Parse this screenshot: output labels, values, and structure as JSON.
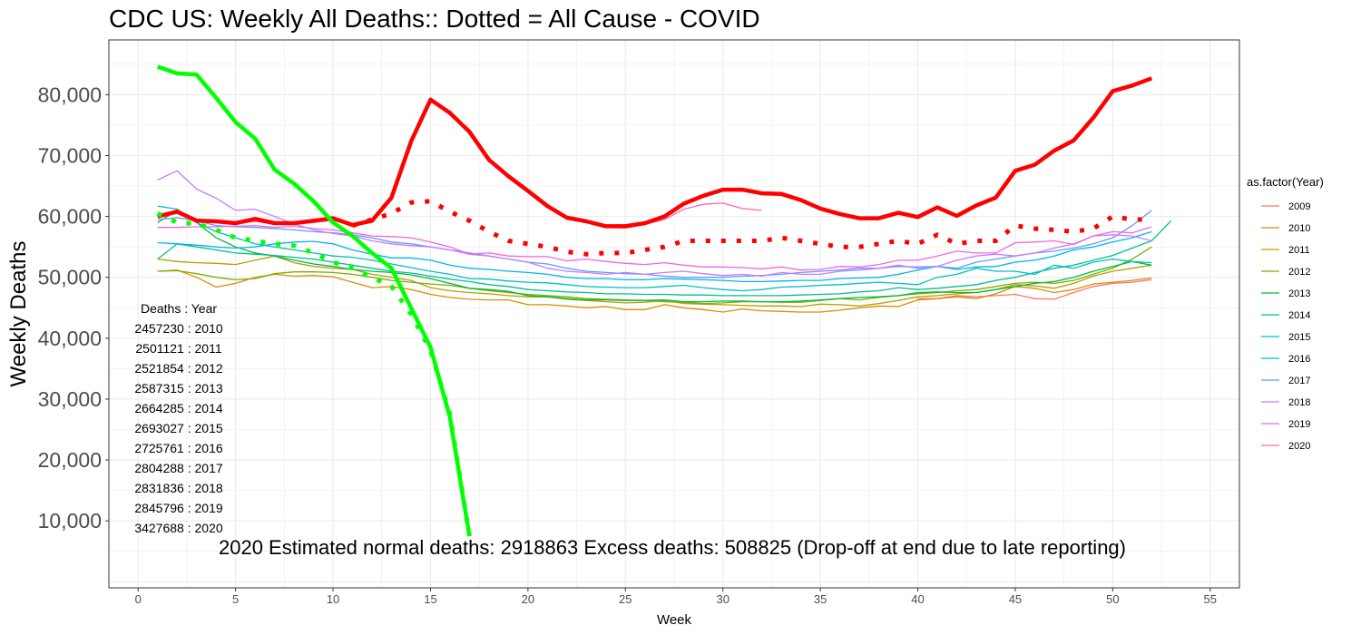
{
  "chart_data": {
    "type": "line",
    "title": "CDC US: Weekly All Deaths:: Dotted = All Cause - COVID",
    "xlabel": "Week",
    "ylabel": "Weekly Deaths",
    "xlim": [
      -1.5,
      56.5
    ],
    "ylim": [
      -1000,
      89000
    ],
    "x_ticks": [
      0,
      5,
      10,
      15,
      20,
      25,
      30,
      35,
      40,
      45,
      50,
      55
    ],
    "y_ticks": [
      10000,
      20000,
      30000,
      40000,
      50000,
      60000,
      70000,
      80000
    ],
    "y_tick_labels": [
      "10,000",
      "20,000",
      "30,000",
      "40,000",
      "50,000",
      "60,000",
      "70,000",
      "80,000"
    ],
    "grid": true,
    "legend": {
      "title": "as.factor(Year)",
      "placement": "right"
    },
    "series": [
      {
        "name": "2009",
        "color": "#F8766D",
        "start_week": 40,
        "values": [
          46500,
          46500,
          47000,
          46800,
          47000,
          47200,
          46500,
          46400,
          47500,
          48500,
          49000,
          49200,
          49600
        ]
      },
      {
        "name": "2010",
        "color": "#DE8C00",
        "start_week": 1,
        "values": [
          51000,
          51200,
          50000,
          48400,
          49000,
          50000,
          50500,
          50200,
          50300,
          50100,
          49200,
          48300,
          48500,
          48000,
          47200,
          46700,
          46400,
          46300,
          46300,
          45500,
          45500,
          45300,
          45000,
          45200,
          44700,
          44700,
          45500,
          45000,
          44700,
          44300,
          44800,
          44500,
          44400,
          44300,
          44300,
          44600,
          45000,
          45300,
          45200,
          46300,
          46500,
          46800,
          46500,
          47300,
          48500,
          48200,
          47500,
          48000,
          48900,
          49200,
          49500,
          49900
        ]
      },
      {
        "name": "2011",
        "color": "#B79F00",
        "start_week": 1,
        "values": [
          53000,
          52600,
          52400,
          52300,
          52100,
          52800,
          53500,
          52400,
          51800,
          51500,
          51300,
          50500,
          50000,
          49500,
          48300,
          47800,
          47500,
          47300,
          47000,
          46800,
          46800,
          46400,
          46200,
          46000,
          45800,
          45900,
          46200,
          45700,
          45600,
          45500,
          45400,
          45300,
          45300,
          45200,
          45600,
          45500,
          45300,
          45700,
          46200,
          46800,
          47000,
          47300,
          47500,
          48000,
          48800,
          48600,
          48200,
          49000,
          50200,
          51000,
          51500,
          52000
        ]
      },
      {
        "name": "2012",
        "color": "#7CAE00",
        "start_week": 1,
        "values": [
          51000,
          51100,
          50600,
          50000,
          49600,
          49800,
          50600,
          50900,
          50900,
          50800,
          50500,
          50000,
          49500,
          49200,
          48900,
          48700,
          48200,
          47800,
          47500,
          47200,
          47000,
          46800,
          46500,
          46400,
          46300,
          46200,
          46000,
          45900,
          45700,
          45800,
          46000,
          46000,
          45900,
          45900,
          46200,
          46500,
          46300,
          46700,
          47000,
          47300,
          47500,
          47800,
          48000,
          48500,
          49000,
          49200,
          49000,
          49500,
          50500,
          51500,
          53000,
          55000
        ]
      },
      {
        "name": "2013",
        "color": "#00BA38",
        "start_week": 1,
        "values": [
          59000,
          61000,
          59000,
          56500,
          55000,
          54000,
          53500,
          52800,
          52200,
          51800,
          51300,
          51000,
          50800,
          50400,
          49800,
          49000,
          48200,
          48000,
          47700,
          47000,
          46800,
          46500,
          46300,
          46300,
          46200,
          46200,
          46300,
          46000,
          46000,
          46100,
          46100,
          46000,
          46000,
          46100,
          46300,
          46500,
          46700,
          46800,
          47000,
          47500,
          47600,
          47500,
          47500,
          48000,
          48500,
          49000,
          49300,
          50000,
          51000,
          51800,
          52600,
          52000
        ]
      },
      {
        "name": "2014",
        "color": "#00C08B",
        "start_week": 1,
        "values": [
          53000,
          55500,
          55000,
          54500,
          54000,
          53800,
          53600,
          53300,
          53000,
          52500,
          52000,
          51500,
          51000,
          50700,
          50200,
          49700,
          49300,
          48800,
          48500,
          48000,
          47800,
          47600,
          47500,
          47300,
          47300,
          47200,
          47200,
          47100,
          47100,
          47000,
          47000,
          47000,
          47000,
          47100,
          47200,
          47300,
          47600,
          47800,
          48300,
          48000,
          48200,
          48500,
          48800,
          49500,
          50000,
          50800,
          51500,
          52000,
          52800,
          53600,
          54800,
          56000,
          59300
        ]
      },
      {
        "name": "2015",
        "color": "#00BFC4",
        "start_week": 1,
        "values": [
          61700,
          61200,
          59000,
          57500,
          56500,
          55500,
          55000,
          54500,
          54000,
          53500,
          53300,
          52800,
          52200,
          51600,
          51000,
          50500,
          49800,
          49700,
          49400,
          49200,
          49100,
          48800,
          48500,
          48400,
          48300,
          48300,
          48500,
          48700,
          48300,
          48000,
          47800,
          48000,
          48400,
          48500,
          48700,
          48800,
          49000,
          49200,
          49000,
          48800,
          50000,
          50500,
          51500,
          51000,
          51000,
          50500,
          52000,
          51500,
          52500,
          53000,
          52600,
          52400
        ]
      },
      {
        "name": "2016",
        "color": "#00B4F0",
        "start_week": 1,
        "values": [
          55700,
          55500,
          55300,
          55000,
          54800,
          55000,
          55500,
          55800,
          55900,
          55500,
          54500,
          53800,
          53200,
          53200,
          52800,
          52000,
          51500,
          51300,
          51000,
          50800,
          50500,
          50000,
          49800,
          49800,
          49600,
          49600,
          49800,
          49700,
          49600,
          49500,
          49300,
          49300,
          49400,
          49500,
          49500,
          49800,
          49900,
          50000,
          50500,
          51200,
          51800,
          51300,
          51700,
          51800,
          52500,
          52800,
          53500,
          54500,
          55000,
          55800,
          56500,
          57500
        ]
      },
      {
        "name": "2017",
        "color": "#619CFF",
        "start_week": 1,
        "values": [
          59500,
          59800,
          59300,
          58500,
          58300,
          58200,
          58000,
          57800,
          57500,
          57300,
          57000,
          56500,
          55800,
          55500,
          55000,
          54500,
          54000,
          53500,
          53000,
          52500,
          52200,
          51500,
          51000,
          50800,
          50600,
          50500,
          50200,
          50000,
          50000,
          50000,
          50200,
          50300,
          50500,
          50800,
          51000,
          51200,
          51500,
          51500,
          51800,
          51700,
          51800,
          51500,
          52500,
          53000,
          53500,
          54000,
          54300,
          54800,
          55500,
          56500,
          58500,
          61000
        ]
      },
      {
        "name": "2018",
        "color": "#C77CFF",
        "start_week": 1,
        "values": [
          66000,
          67500,
          64500,
          63000,
          61000,
          61200,
          60000,
          58800,
          57800,
          57200,
          56800,
          56000,
          55500,
          55200,
          55000,
          54500,
          53800,
          53500,
          53000,
          52500,
          51500,
          51000,
          50800,
          50500,
          50800,
          50500,
          50800,
          51000,
          50600,
          50300,
          50500,
          50200,
          50800,
          50500,
          50500,
          51000,
          51200,
          51500,
          52000,
          51500,
          51800,
          52800,
          53500,
          53800,
          53500,
          54000,
          54800,
          55500,
          56800,
          57000,
          56800,
          56000
        ]
      },
      {
        "name": "2019",
        "color": "#F564E3",
        "start_week": 1,
        "values": [
          58200,
          58200,
          58300,
          58300,
          58400,
          58500,
          58200,
          58400,
          58000,
          57800,
          57300,
          56800,
          56700,
          56500,
          55800,
          55000,
          53800,
          54000,
          53500,
          53400,
          53400,
          52700,
          53000,
          52600,
          52300,
          52100,
          52400,
          52000,
          51700,
          51700,
          51600,
          51400,
          51700,
          51200,
          51300,
          51800,
          51700,
          52100,
          52800,
          52800,
          53500,
          54300,
          54000,
          54000,
          55700,
          55800,
          56000,
          55400,
          56800,
          57500,
          57300,
          58300
        ]
      },
      {
        "name": "2020",
        "color": "#FF64B0",
        "start_week": 1,
        "values": [
          60000,
          60500,
          59300,
          59000,
          58800,
          59200,
          58700,
          58700,
          59000,
          59400,
          58500,
          59000,
          62700,
          72000,
          79000,
          76800,
          73800,
          69200,
          66500,
          64000,
          61500,
          59600,
          59000,
          58200,
          58100,
          58700,
          59500,
          61200,
          62000,
          62200,
          61300,
          61000
        ]
      }
    ],
    "highlight_series": [
      {
        "color": "#FF0000",
        "style": "solid",
        "start_week": 1,
        "values": [
          60000,
          60800,
          59300,
          59200,
          58900,
          59600,
          58900,
          58900,
          59300,
          59700,
          58600,
          59300,
          63100,
          72300,
          79200,
          77000,
          73900,
          69300,
          66600,
          64200,
          61700,
          59800,
          59200,
          58400,
          58400,
          58900,
          60000,
          62100,
          63400,
          64400,
          64400,
          63800,
          63700,
          62700,
          61300,
          60400,
          59700,
          59700,
          60600,
          59900,
          61500,
          60100,
          61800,
          63100,
          67500,
          68500,
          70800,
          72500,
          76200,
          80600,
          81500,
          82700
        ]
      },
      {
        "color": "#FF0000",
        "style": "dotted",
        "start_week": 11,
        "values": [
          58500,
          59500,
          60500,
          62300,
          62500,
          60800,
          59300,
          57500,
          56000,
          55500,
          55000,
          54200,
          53800,
          54000,
          54000,
          54500,
          55000,
          56000,
          56000,
          56000,
          56000,
          56000,
          56500,
          56000,
          55500,
          55000,
          55000,
          55500,
          56000,
          55500,
          57000,
          55500,
          56000,
          56000,
          58500,
          58000,
          57800,
          57500,
          58000,
          60000,
          59500,
          59500
        ]
      },
      {
        "color": "#00FF00",
        "style": "solid",
        "start_week": 1,
        "values": [
          84600,
          83500,
          83300,
          79500,
          75500,
          72800,
          67700,
          65400,
          62500,
          59000,
          56800,
          54000,
          51500,
          45000,
          38500,
          27000,
          7500
        ]
      },
      {
        "color": "#00FF00",
        "style": "dotted",
        "start_week": 1,
        "values": [
          60500,
          59000,
          58800,
          57800,
          56500,
          56000,
          55500,
          55200,
          54000,
          52500,
          51500,
          50000,
          48500,
          44000,
          38000,
          27500,
          7500
        ]
      }
    ],
    "annotations": {
      "deaths_table_header": "Deaths : Year",
      "deaths_table": [
        "2457230 : 2010",
        "2501121 : 2011",
        "2521854 : 2012",
        "2587315 : 2013",
        "2664285 : 2014",
        "2693027 : 2015",
        "2725761 : 2016",
        "2804288 : 2017",
        "2831836 : 2018",
        "2845796 : 2019",
        "3427688 : 2020"
      ],
      "summary": "2020 Estimated normal deaths: 2918863  Excess deaths: 508825  (Drop-off at end due to late reporting)"
    }
  }
}
